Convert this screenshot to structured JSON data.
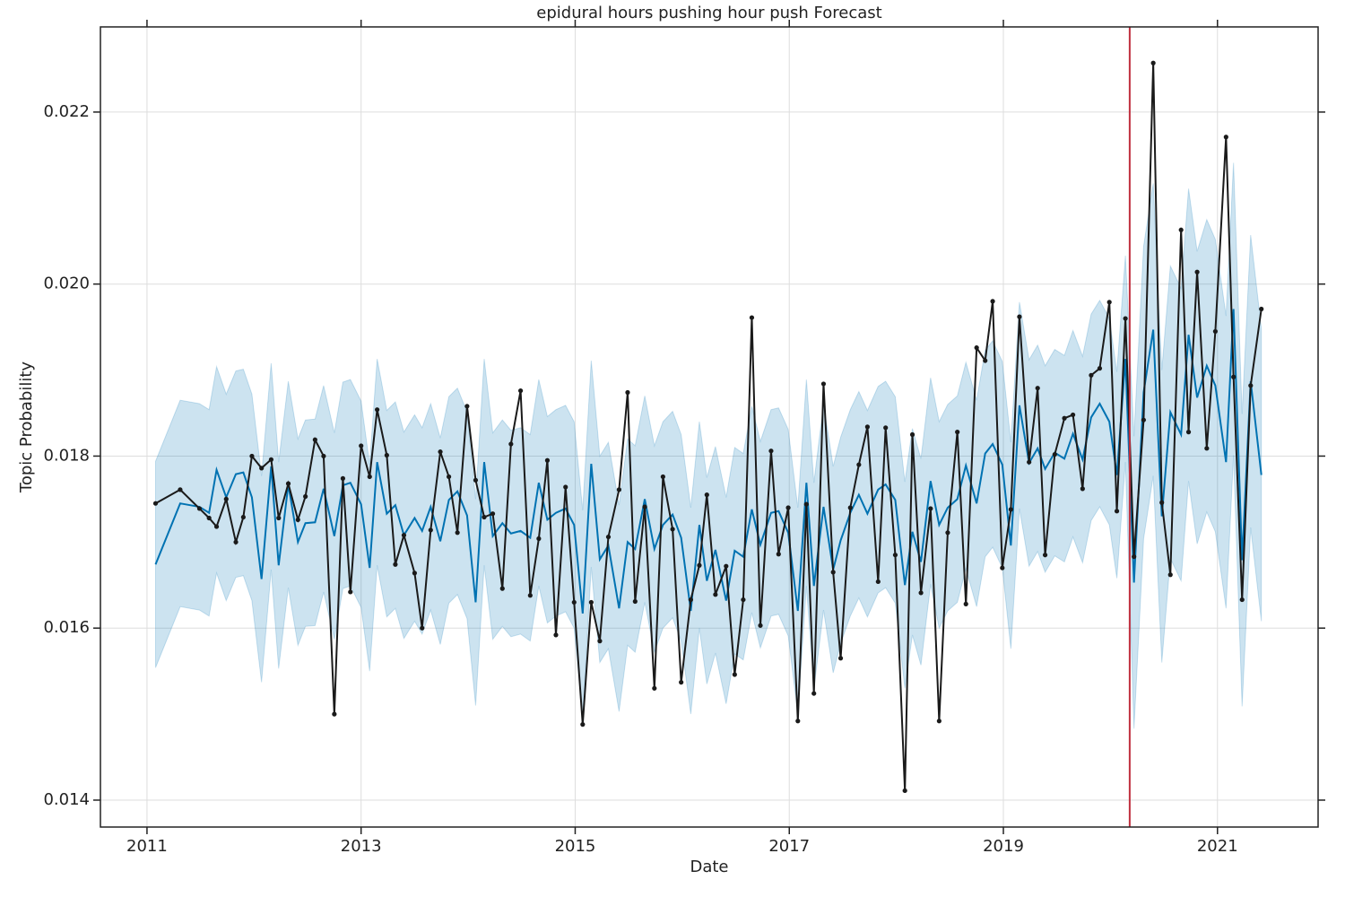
{
  "chart_data": {
    "type": "line",
    "title": "epidural hours pushing hour push Forecast",
    "xlabel": "Date",
    "ylabel": "Topic Probability",
    "xlim": [
      2010.565,
      2021.94
    ],
    "ylim": [
      0.013687,
      0.02299
    ],
    "xticks": [
      2011,
      2013,
      2015,
      2017,
      2019,
      2021
    ],
    "yticks": [
      0.014,
      0.016,
      0.018,
      {
        "value": 0.02,
        "label": "0.020"
      },
      0.022
    ],
    "grid": true,
    "x": [
      2011.08,
      2011.31,
      2011.49,
      2011.58,
      2011.65,
      2011.74,
      2011.83,
      2011.9,
      2011.98,
      2012.07,
      2012.16,
      2012.23,
      2012.32,
      2012.41,
      2012.48,
      2012.57,
      2012.65,
      2012.75,
      2012.83,
      2012.9,
      2013.0,
      2013.08,
      2013.15,
      2013.24,
      2013.32,
      2013.4,
      2013.5,
      2013.57,
      2013.65,
      2013.74,
      2013.82,
      2013.9,
      2013.99,
      2014.07,
      2014.15,
      2014.23,
      2014.32,
      2014.4,
      2014.49,
      2014.58,
      2014.66,
      2014.74,
      2014.82,
      2014.91,
      2014.99,
      2015.07,
      2015.15,
      2015.23,
      2015.31,
      2015.41,
      2015.49,
      2015.56,
      2015.65,
      2015.74,
      2015.82,
      2015.91,
      2015.99,
      2016.08,
      2016.16,
      2016.23,
      2016.31,
      2016.41,
      2016.49,
      2016.57,
      2016.65,
      2016.73,
      2016.83,
      2016.9,
      2016.99,
      2017.08,
      2017.16,
      2017.23,
      2017.32,
      2017.41,
      2017.48,
      2017.57,
      2017.65,
      2017.73,
      2017.83,
      2017.9,
      2017.99,
      2018.08,
      2018.15,
      2018.23,
      2018.32,
      2018.4,
      2018.48,
      2018.57,
      2018.65,
      2018.75,
      2018.83,
      2018.9,
      2018.99,
      2019.07,
      2019.15,
      2019.24,
      2019.32,
      2019.39,
      2019.48,
      2019.57,
      2019.65,
      2019.74,
      2019.82,
      2019.9,
      2019.99,
      2020.06,
      2020.14,
      2020.22,
      2020.31,
      2020.4,
      2020.48,
      2020.56,
      2020.66,
      2020.73,
      2020.81,
      2020.9,
      2020.98,
      2021.08,
      2021.15,
      2021.23,
      2021.31,
      2021.41
    ],
    "band": {
      "color": "#0072B2",
      "opacity": 0.2,
      "upper": [
        0.01794,
        0.01865,
        0.01861,
        0.01854,
        0.01904,
        0.01872,
        0.01899,
        0.01901,
        0.01872,
        0.01777,
        0.01908,
        0.01793,
        0.01887,
        0.0182,
        0.01842,
        0.01843,
        0.01882,
        0.01827,
        0.01886,
        0.01889,
        0.01864,
        0.0179,
        0.01913,
        0.01853,
        0.01863,
        0.01828,
        0.01848,
        0.01833,
        0.01861,
        0.01821,
        0.01869,
        0.01879,
        0.01851,
        0.0175,
        0.01913,
        0.01827,
        0.01842,
        0.0183,
        0.01833,
        0.01825,
        0.01889,
        0.01846,
        0.01854,
        0.01859,
        0.0184,
        0.01737,
        0.01911,
        0.018,
        0.01816,
        0.01743,
        0.0182,
        0.01812,
        0.0187,
        0.01812,
        0.0184,
        0.01852,
        0.01825,
        0.0174,
        0.0184,
        0.01775,
        0.01811,
        0.01752,
        0.0181,
        0.01803,
        0.01858,
        0.01817,
        0.01854,
        0.01856,
        0.01831,
        0.0174,
        0.01889,
        0.01769,
        0.01861,
        0.01788,
        0.01822,
        0.01854,
        0.01875,
        0.01853,
        0.01881,
        0.01887,
        0.01869,
        0.0177,
        0.01832,
        0.01797,
        0.01891,
        0.0184,
        0.0186,
        0.0187,
        0.01909,
        0.01865,
        0.01923,
        0.01934,
        0.0191,
        0.01816,
        0.01979,
        0.01912,
        0.01929,
        0.01905,
        0.01924,
        0.01917,
        0.01946,
        0.01916,
        0.01965,
        0.01981,
        0.0196,
        0.01898,
        0.02033,
        0.01823,
        0.02044,
        0.02117,
        0.019,
        0.02021,
        0.01995,
        0.02111,
        0.02038,
        0.02075,
        0.02052,
        0.01963,
        0.02141,
        0.01849,
        0.02057,
        0.01948
      ],
      "lower": [
        0.01554,
        0.01625,
        0.01621,
        0.01614,
        0.01664,
        0.01632,
        0.01659,
        0.01661,
        0.01632,
        0.01537,
        0.01668,
        0.01553,
        0.01647,
        0.0158,
        0.01602,
        0.01603,
        0.01642,
        0.01587,
        0.01646,
        0.01649,
        0.01624,
        0.0155,
        0.01673,
        0.01613,
        0.01623,
        0.01588,
        0.01608,
        0.01593,
        0.01621,
        0.01581,
        0.01629,
        0.01639,
        0.01611,
        0.0151,
        0.01673,
        0.01587,
        0.01602,
        0.0159,
        0.01593,
        0.01585,
        0.01649,
        0.01606,
        0.01614,
        0.01619,
        0.016,
        0.01497,
        0.01671,
        0.0156,
        0.01576,
        0.01503,
        0.0158,
        0.01572,
        0.0163,
        0.01572,
        0.016,
        0.01612,
        0.01585,
        0.015,
        0.016,
        0.01535,
        0.01571,
        0.01512,
        0.0157,
        0.01563,
        0.01618,
        0.01577,
        0.01614,
        0.01616,
        0.01591,
        0.015,
        0.01649,
        0.01529,
        0.01621,
        0.01548,
        0.01582,
        0.01614,
        0.01635,
        0.01613,
        0.01641,
        0.01647,
        0.01629,
        0.0153,
        0.01592,
        0.01557,
        0.01651,
        0.016,
        0.0162,
        0.0163,
        0.01669,
        0.01625,
        0.01683,
        0.01694,
        0.0167,
        0.01576,
        0.01739,
        0.01672,
        0.01689,
        0.01665,
        0.01684,
        0.01677,
        0.01706,
        0.01676,
        0.01725,
        0.01741,
        0.0172,
        0.01658,
        0.01793,
        0.01483,
        0.01704,
        0.01777,
        0.0156,
        0.01681,
        0.01655,
        0.01771,
        0.01698,
        0.01735,
        0.01712,
        0.01623,
        0.01801,
        0.01509,
        0.01717,
        0.01608
      ]
    },
    "series": [
      {
        "color": "#0072B2",
        "markers": false,
        "values": [
          0.01674,
          0.01745,
          0.01741,
          0.01734,
          0.01784,
          0.01752,
          0.01779,
          0.01781,
          0.01752,
          0.01657,
          0.01788,
          0.01673,
          0.01767,
          0.017,
          0.01722,
          0.01723,
          0.01762,
          0.01707,
          0.01766,
          0.01769,
          0.01744,
          0.0167,
          0.01793,
          0.01733,
          0.01743,
          0.01708,
          0.01728,
          0.01713,
          0.01741,
          0.01701,
          0.01749,
          0.01759,
          0.01731,
          0.0163,
          0.01793,
          0.01707,
          0.01722,
          0.0171,
          0.01713,
          0.01705,
          0.01769,
          0.01726,
          0.01734,
          0.01739,
          0.0172,
          0.01617,
          0.01791,
          0.0168,
          0.01696,
          0.01623,
          0.017,
          0.01692,
          0.0175,
          0.01692,
          0.0172,
          0.01732,
          0.01705,
          0.0162,
          0.0172,
          0.01655,
          0.01691,
          0.01632,
          0.0169,
          0.01683,
          0.01738,
          0.01697,
          0.01734,
          0.01736,
          0.01711,
          0.0162,
          0.01769,
          0.01649,
          0.01741,
          0.01668,
          0.01702,
          0.01734,
          0.01755,
          0.01733,
          0.01761,
          0.01767,
          0.01749,
          0.0165,
          0.01712,
          0.01677,
          0.01771,
          0.0172,
          0.0174,
          0.0175,
          0.01789,
          0.01745,
          0.01803,
          0.01814,
          0.0179,
          0.01696,
          0.01859,
          0.01792,
          0.01809,
          0.01785,
          0.01804,
          0.01797,
          0.01826,
          0.01796,
          0.01845,
          0.01861,
          0.0184,
          0.01778,
          0.01913,
          0.01653,
          0.01874,
          0.01947,
          0.0173,
          0.01851,
          0.01825,
          0.01941,
          0.01868,
          0.01905,
          0.01882,
          0.01793,
          0.01971,
          0.01679,
          0.01887,
          0.01778
        ]
      },
      {
        "color": "#1a1a1a",
        "markers": true,
        "values": [
          0.01745,
          0.01761,
          0.01739,
          0.01728,
          0.01718,
          0.0175,
          0.017,
          0.01729,
          0.018,
          0.01786,
          0.01796,
          0.01728,
          0.01768,
          0.01726,
          0.01753,
          0.01819,
          0.018,
          0.015,
          0.01774,
          0.01642,
          0.01812,
          0.01776,
          0.01854,
          0.01801,
          0.01674,
          0.01708,
          0.01664,
          0.016,
          0.01714,
          0.01805,
          0.01776,
          0.01711,
          0.01858,
          0.01772,
          0.01729,
          0.01733,
          0.01646,
          0.01814,
          0.01876,
          0.01638,
          0.01704,
          0.01795,
          0.01592,
          0.01764,
          0.0163,
          0.01488,
          0.0163,
          0.01585,
          0.01706,
          0.01761,
          0.01874,
          0.01631,
          0.01741,
          0.0153,
          0.01776,
          0.01715,
          0.01537,
          0.01633,
          0.01673,
          0.01755,
          0.01639,
          0.01672,
          0.01546,
          0.01633,
          0.01961,
          0.01603,
          0.01806,
          0.01686,
          0.0174,
          0.01492,
          0.01744,
          0.01524,
          0.01884,
          0.01665,
          0.01565,
          0.0174,
          0.0179,
          0.01834,
          0.01654,
          0.01833,
          0.01685,
          0.01411,
          0.01825,
          0.01641,
          0.01739,
          0.01492,
          0.01711,
          0.01828,
          0.01628,
          0.01926,
          0.01911,
          0.0198,
          0.0167,
          0.01738,
          0.01962,
          0.01793,
          0.01879,
          0.01685,
          0.01802,
          0.01844,
          0.01848,
          0.01762,
          0.01894,
          0.01902,
          0.01979,
          0.01736,
          0.0196,
          0.01683,
          0.01842,
          0.02257,
          0.01746,
          0.01662,
          0.02063,
          0.01828,
          0.02014,
          0.01809,
          0.01945,
          0.02171,
          0.01892,
          0.01633,
          0.01882,
          0.01971
        ]
      }
    ],
    "vline": {
      "value": 2020.18,
      "color": "#c0303f"
    }
  }
}
